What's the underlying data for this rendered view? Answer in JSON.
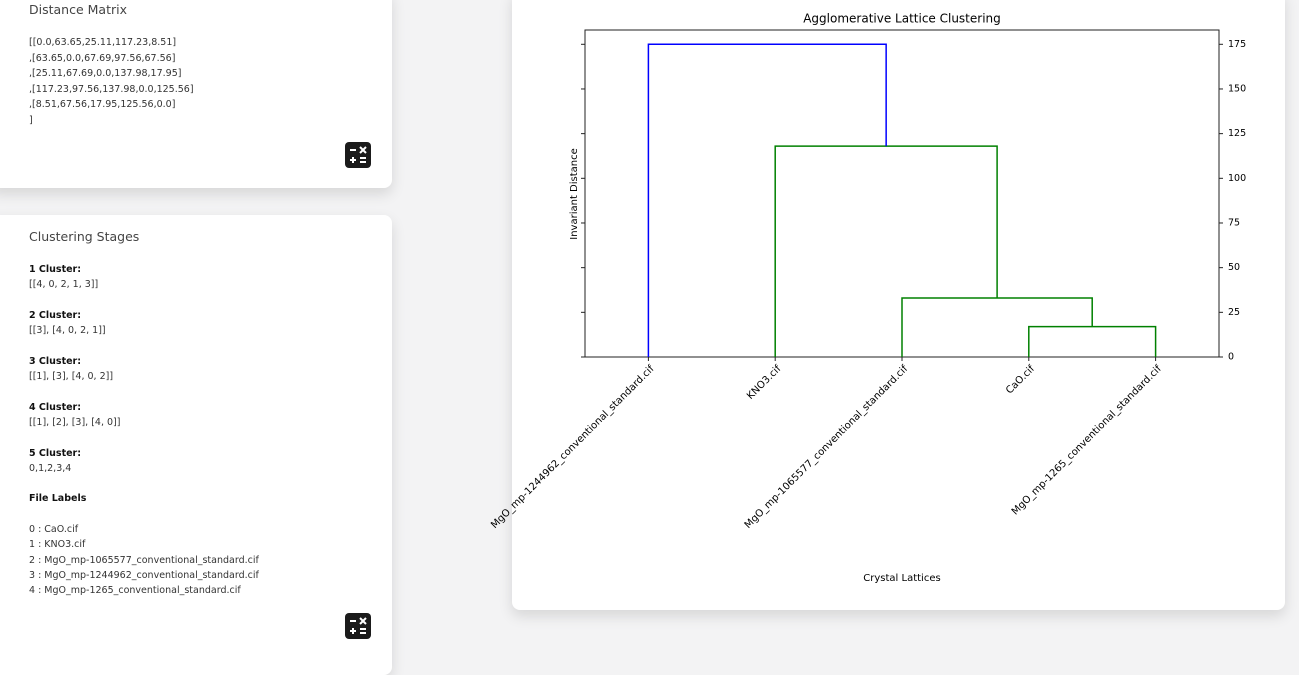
{
  "matrix_panel": {
    "title": "Distance Matrix",
    "lines": [
      "[[0.0,63.65,25.11,117.23,8.51]",
      ",[63.65,0.0,67.69,97.56,67.56]",
      ",[25.11,67.69,0.0,137.98,17.95]",
      ",[117.23,97.56,137.98,0.0,125.56]",
      ",[8.51,67.56,17.95,125.56,0.0]",
      "]"
    ]
  },
  "stages_panel": {
    "title": "Clustering Stages",
    "stages": [
      {
        "title": "1 Cluster:",
        "value": "[[4, 0, 2, 1, 3]]"
      },
      {
        "title": "2 Cluster:",
        "value": "[[3], [4, 0, 2, 1]]"
      },
      {
        "title": "3 Cluster:",
        "value": "[[1], [3], [4, 0, 2]]"
      },
      {
        "title": "4 Cluster:",
        "value": "[[1], [2], [3], [4, 0]]"
      },
      {
        "title": "5 Cluster:",
        "value": "0,1,2,3,4"
      }
    ],
    "labels_title": "File Labels",
    "labels": [
      "0 : CaO.cif",
      "1 : KNO3.cif",
      "2 : MgO_mp-1065577_conventional_standard.cif",
      "3 : MgO_mp-1244962_conventional_standard.cif",
      "4 : MgO_mp-1265_conventional_standard.cif"
    ]
  },
  "chart_data": {
    "type": "dendrogram",
    "title": "Agglomerative Lattice Clustering",
    "x_label": "Crystal Lattices",
    "y_label": "Invariant Distance",
    "leaves": [
      "MgO_mp-1244962_conventional_standard.cif",
      "KNO3.cif",
      "MgO_mp-1065577_conventional_standard.cif",
      "CaO.cif",
      "MgO_mp-1265_conventional_standard.cif"
    ],
    "links": [
      {
        "left": 3,
        "right": 4,
        "height": 17,
        "color": "#008000"
      },
      {
        "left": 2,
        "right": 5,
        "height": 33,
        "color": "#008000"
      },
      {
        "left": 1,
        "right": 6,
        "height": 118,
        "color": "#008000"
      },
      {
        "left": 0,
        "right": 7,
        "height": 175,
        "color": "#0000ff"
      }
    ],
    "ylim": [
      0,
      183
    ],
    "yticks": [
      0,
      25,
      50,
      75,
      100,
      125,
      150,
      175
    ],
    "y_axis_side": "right"
  }
}
